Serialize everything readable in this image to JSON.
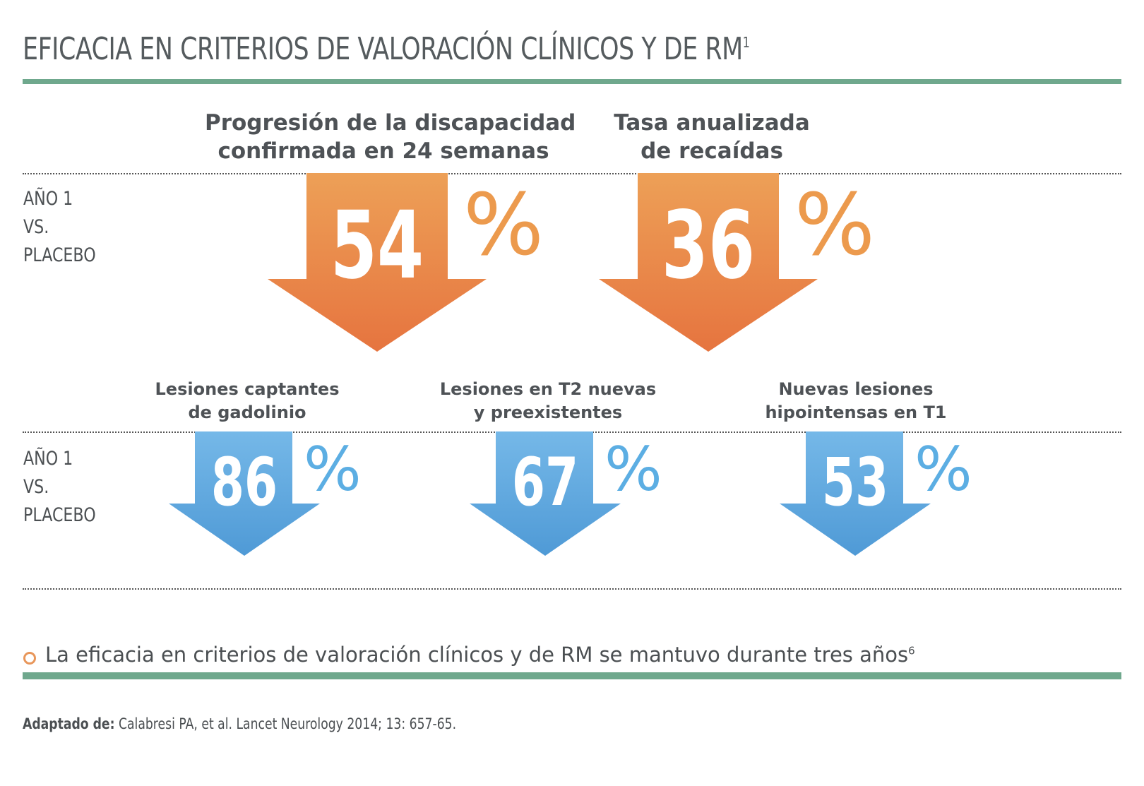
{
  "title": {
    "text": "EFICACIA EN CRITERIOS DE VALORACIÓN CLÍNICOS Y DE RM",
    "sup": "1"
  },
  "row_label": {
    "line1": "AÑO 1",
    "line2": "VS.",
    "line3": "PLACEBO"
  },
  "top_row": [
    {
      "heading_line1": "Progresión de la discapacidad",
      "heading_line2": "confirmada en 24 semanas",
      "value": "54",
      "unit": "%"
    },
    {
      "heading_line1": "Tasa anualizada",
      "heading_line2": "de recaídas",
      "value": "36",
      "unit": "%"
    }
  ],
  "bottom_row": [
    {
      "heading_line1": "Lesiones captantes",
      "heading_line2": "de gadolinio",
      "value": "86",
      "unit": "%"
    },
    {
      "heading_line1": "Lesiones en T2 nuevas",
      "heading_line2": "y preexistentes",
      "value": "67",
      "unit": "%"
    },
    {
      "heading_line1": "Nuevas lesiones",
      "heading_line2": "hipointensas en T1",
      "value": "53",
      "unit": "%"
    }
  ],
  "note": {
    "text": "La eficacia en criterios de valoración clínicos y de RM se mantuvo durante tres años",
    "sup": "6"
  },
  "source": {
    "label": "Adaptado de:",
    "text": " Calabresi PA, et al. Lancet Neurology 2014; 13: 657-65."
  },
  "colors": {
    "rule": "#6fa88d",
    "orange_top": "#eda057",
    "orange_bottom": "#e6743f",
    "blue_top": "#75b8e8",
    "blue_bottom": "#4f9ad6",
    "orange_pct": "#ec9a4d",
    "blue_pct": "#5caee3"
  },
  "icons": {
    "bullet": "orange-ring-bullet",
    "arrow": "down-arrow"
  }
}
